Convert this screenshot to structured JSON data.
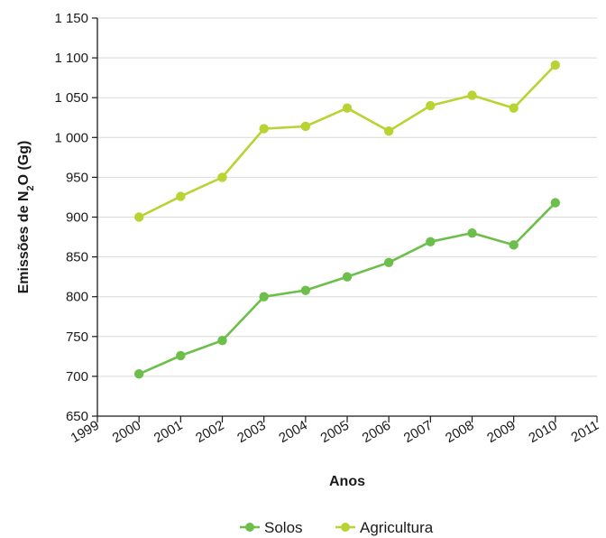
{
  "chart_data": {
    "type": "line",
    "xlabel": "Anos",
    "ylabel": "Emissões de N2O (Gg)",
    "ylabel_parts": {
      "prefix": "Emissões de N",
      "subscript": "2",
      "suffix": "O (Gg)"
    },
    "xlim": [
      1999,
      2011
    ],
    "ylim": [
      650,
      1150
    ],
    "x_ticks": [
      1999,
      2000,
      2001,
      2002,
      2003,
      2004,
      2005,
      2006,
      2007,
      2008,
      2009,
      2010,
      2011
    ],
    "y_ticks": [
      650,
      700,
      750,
      800,
      850,
      900,
      950,
      1000,
      1050,
      1100,
      1150
    ],
    "y_tick_labels": [
      "650",
      "700",
      "750",
      "800",
      "850",
      "900",
      "950",
      "1 000",
      "1 050",
      "1 100",
      "1 150"
    ],
    "grid": "horizontal",
    "legend_position": "bottom-center",
    "x": [
      2000,
      2001,
      2002,
      2003,
      2004,
      2005,
      2006,
      2007,
      2008,
      2009,
      2010
    ],
    "series": [
      {
        "name": "Solos",
        "color": "#6cbf4b",
        "values": [
          703,
          726,
          745,
          800,
          808,
          825,
          843,
          869,
          880,
          865,
          918
        ]
      },
      {
        "name": "Agricultura",
        "color": "#b8d432",
        "values": [
          900,
          926,
          950,
          1011,
          1014,
          1037,
          1008,
          1040,
          1053,
          1037,
          1091
        ]
      }
    ]
  }
}
